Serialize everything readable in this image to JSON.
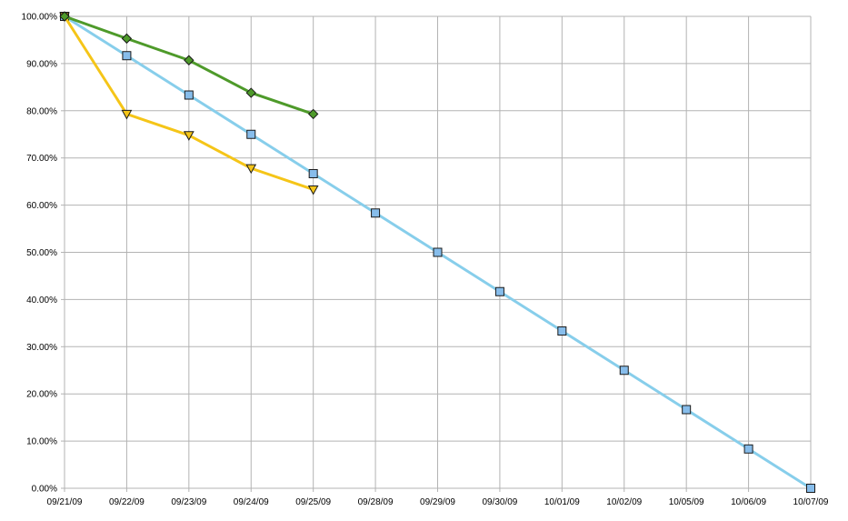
{
  "chart_data": {
    "type": "line",
    "title": "",
    "xlabel": "",
    "ylabel": "",
    "categories": [
      "09/21/09",
      "09/22/09",
      "09/23/09",
      "09/24/09",
      "09/25/09",
      "09/28/09",
      "09/29/09",
      "09/30/09",
      "10/01/09",
      "10/02/09",
      "10/05/09",
      "10/06/09",
      "10/07/09"
    ],
    "y_ticks": [
      {
        "value": 0,
        "label": "0.00%"
      },
      {
        "value": 10,
        "label": "10.00%"
      },
      {
        "value": 20,
        "label": "20.00%"
      },
      {
        "value": 30,
        "label": "30.00%"
      },
      {
        "value": 40,
        "label": "40.00%"
      },
      {
        "value": 50,
        "label": "50.00%"
      },
      {
        "value": 60,
        "label": "60.00%"
      },
      {
        "value": 70,
        "label": "70.00%"
      },
      {
        "value": 80,
        "label": "80.00%"
      },
      {
        "value": 90,
        "label": "90.00%"
      },
      {
        "value": 100,
        "label": "100.00%"
      }
    ],
    "ylim": [
      0,
      100
    ],
    "grid": true,
    "legend": "none",
    "series": [
      {
        "color": "#87CEEB",
        "marker": "square",
        "marker_fill": "#87BDEB",
        "values": [
          100,
          91.67,
          83.33,
          75,
          66.67,
          58.33,
          50,
          41.67,
          33.33,
          25,
          16.67,
          8.33,
          0
        ]
      },
      {
        "color": "#F5C518",
        "marker": "triangle-down",
        "marker_fill": "#F5C518",
        "values": [
          100,
          79.3,
          74.8,
          67.8,
          63.3,
          null,
          null,
          null,
          null,
          null,
          null,
          null,
          null
        ]
      },
      {
        "color": "#4E9A2A",
        "marker": "diamond",
        "marker_fill": "#4E9A2A",
        "values": [
          100,
          95.3,
          90.7,
          83.8,
          79.3,
          null,
          null,
          null,
          null,
          null,
          null,
          null,
          null
        ]
      }
    ]
  }
}
